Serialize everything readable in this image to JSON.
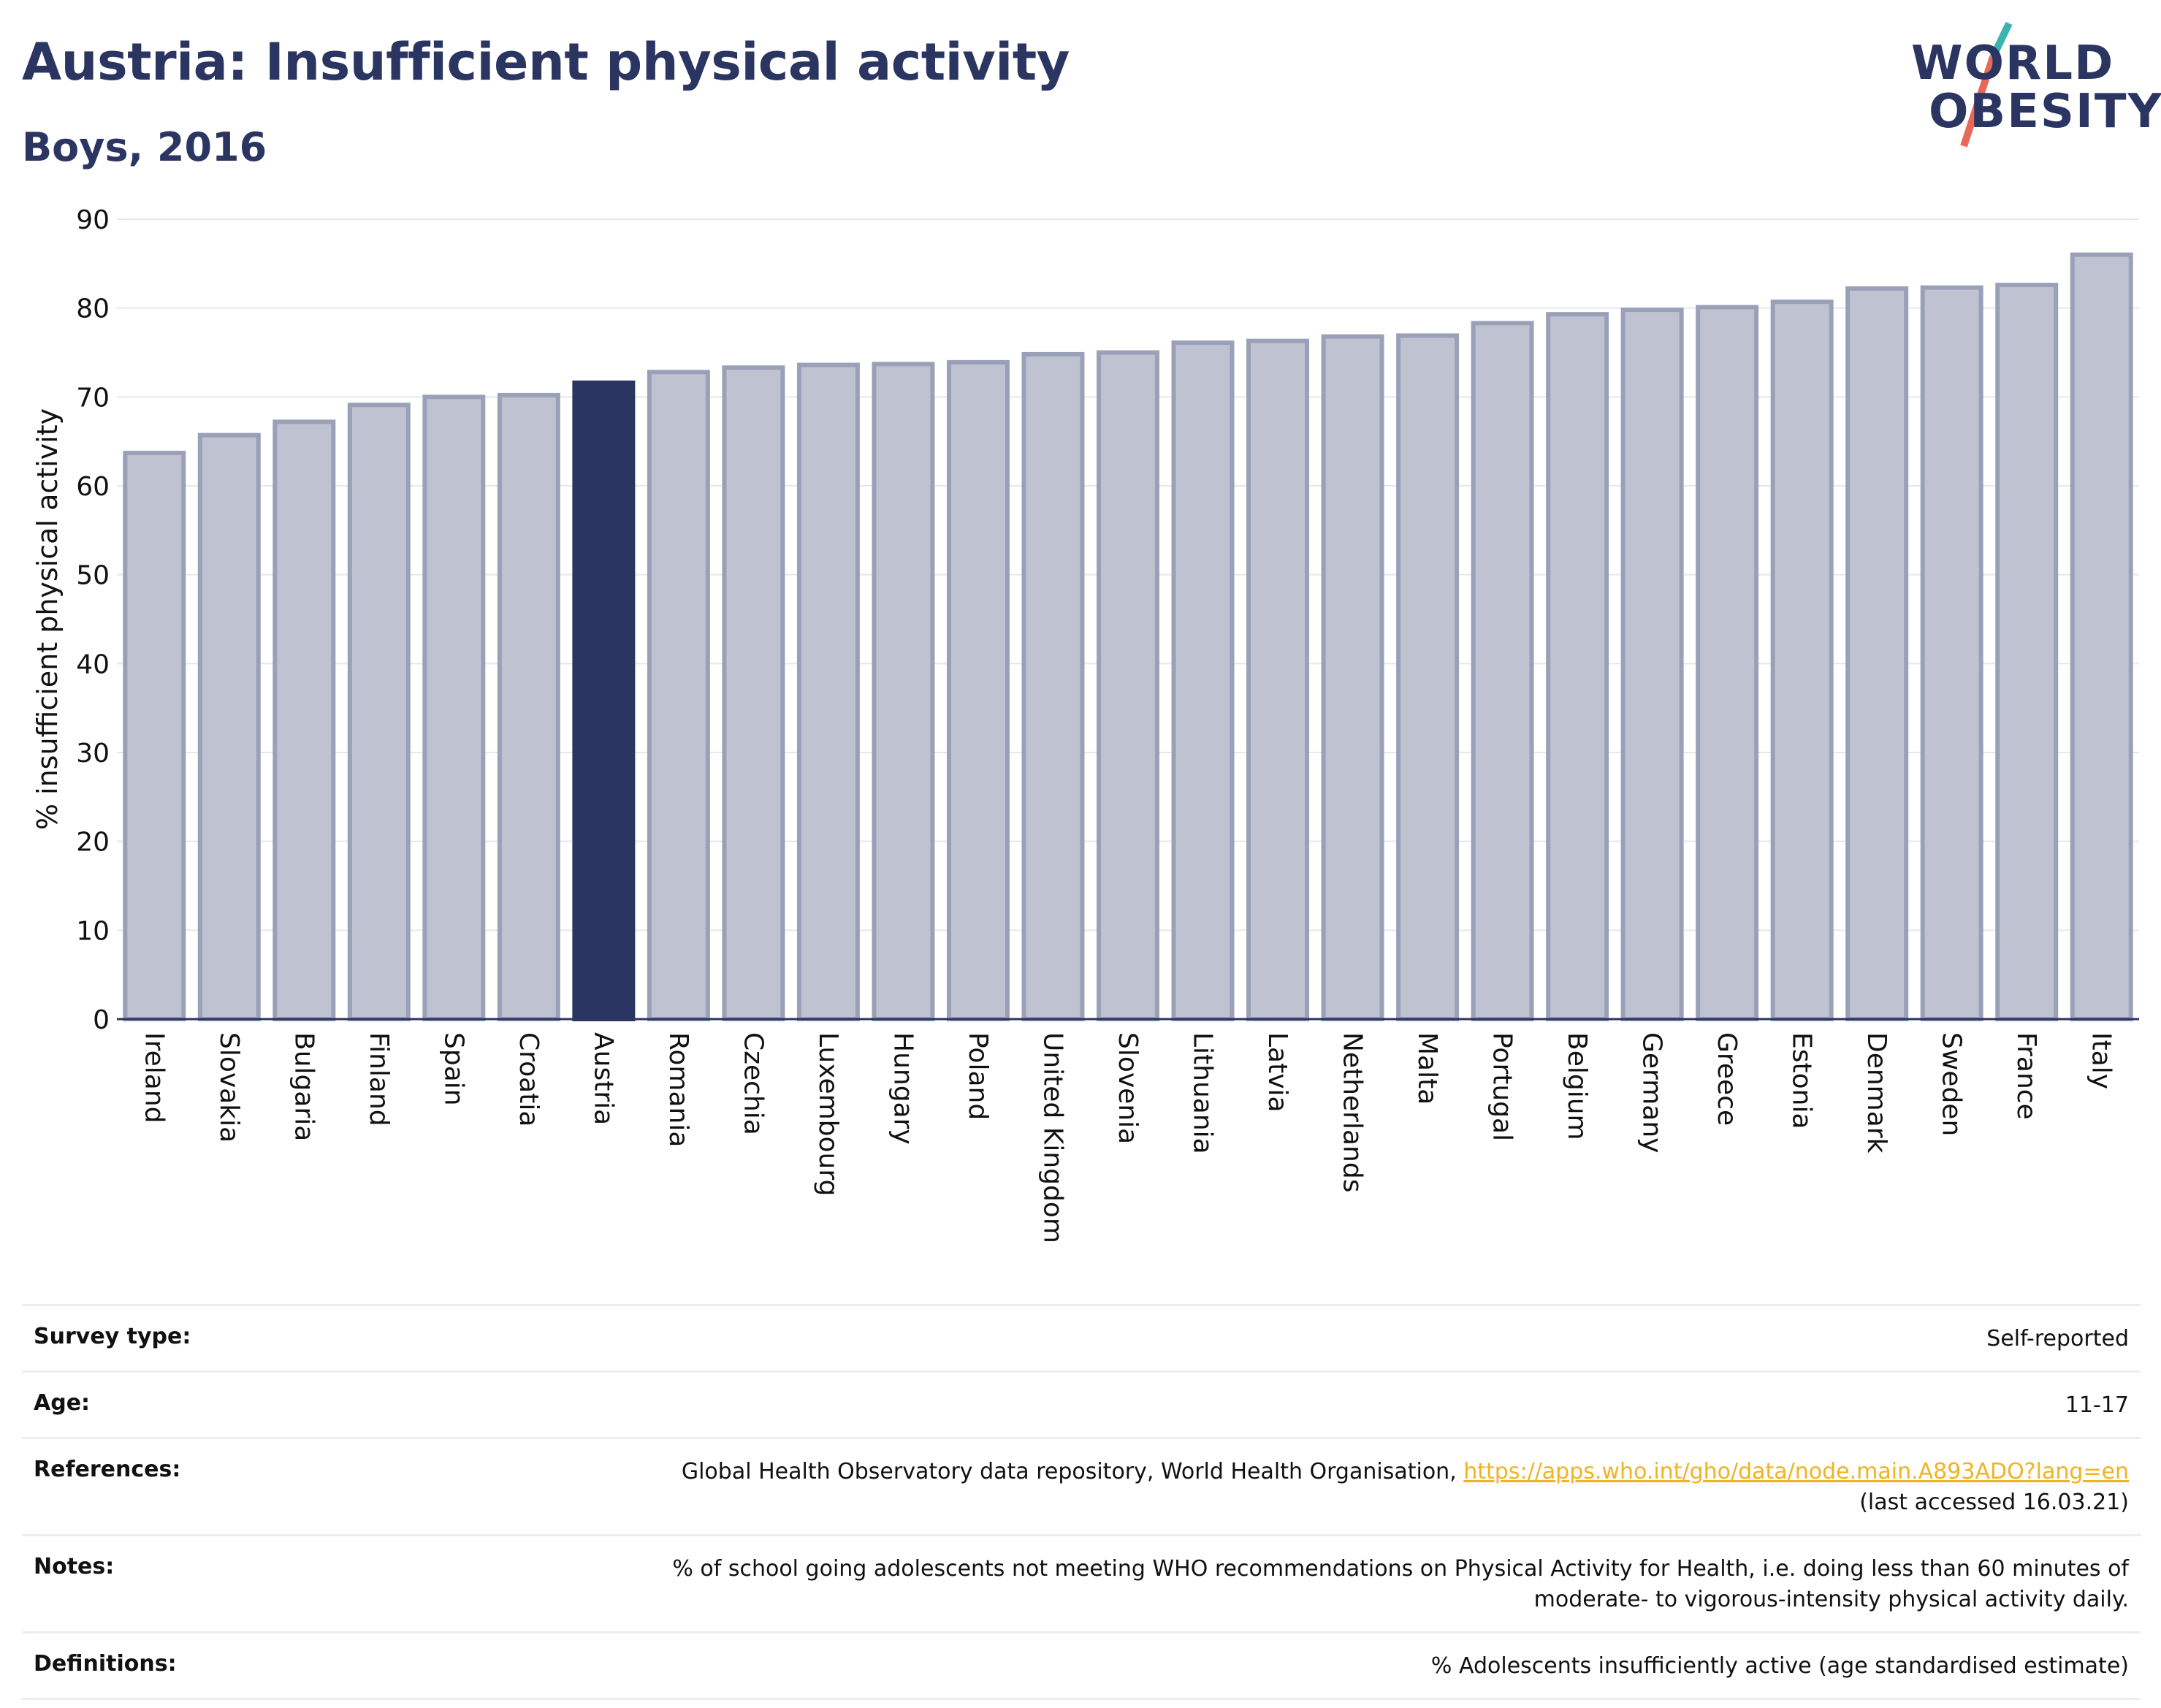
{
  "title": "Austria: Insufficient physical activity",
  "subtitle": "Boys, 2016",
  "logo": {
    "line1": "WORLD",
    "line2": "OBESITY"
  },
  "colors": {
    "highlight": "#2b3561",
    "bar_fill": "#bfc3d1",
    "bar_edge": "#9aa0b8",
    "title": "#2b3561",
    "logo_teal": "#3bb3b3",
    "logo_red": "#e8685a",
    "link": "#f0b323"
  },
  "chart_data": {
    "type": "bar",
    "categories": [
      "Ireland",
      "Slovakia",
      "Bulgaria",
      "Finland",
      "Spain",
      "Croatia",
      "Austria",
      "Romania",
      "Czechia",
      "Luxembourg",
      "Hungary",
      "Poland",
      "United Kingdom",
      "Slovenia",
      "Lithuania",
      "Latvia",
      "Netherlands",
      "Malta",
      "Portugal",
      "Belgium",
      "Germany",
      "Greece",
      "Estonia",
      "Denmark",
      "Sweden",
      "France",
      "Italy"
    ],
    "values": [
      63.7,
      65.7,
      67.2,
      69.1,
      70.0,
      70.2,
      71.6,
      72.8,
      73.3,
      73.6,
      73.7,
      73.9,
      74.8,
      75.0,
      76.1,
      76.3,
      76.8,
      76.9,
      78.3,
      79.3,
      79.8,
      80.1,
      80.7,
      82.2,
      82.3,
      82.6,
      86.0
    ],
    "highlight": "Austria",
    "ylabel": "% insufficient physical activity",
    "ylim": [
      0,
      90
    ],
    "yticks": [
      0,
      10,
      20,
      30,
      40,
      50,
      60,
      70,
      80,
      90
    ],
    "grid": true
  },
  "info": {
    "survey_label": "Survey type:",
    "survey_value": "Self-reported",
    "age_label": "Age:",
    "age_value": "11-17",
    "ref_label": "References:",
    "ref_text": "Global Health Observatory data repository, World Health Organisation, ",
    "ref_link": "https://apps.who.int/gho/data/node.main.A893ADO?lang=en",
    "ref_accessed": "(last accessed 16.03.21)",
    "notes_label": "Notes:",
    "notes_line1": "% of school going adolescents not meeting WHO recommendations on Physical Activity for Health, i.e. doing less than 60 minutes of",
    "notes_line2": "moderate- to vigorous-intensity physical activity daily.",
    "def_label": "Definitions:",
    "def_value": "% Adolescents insufficiently active (age standardised estimate)"
  }
}
